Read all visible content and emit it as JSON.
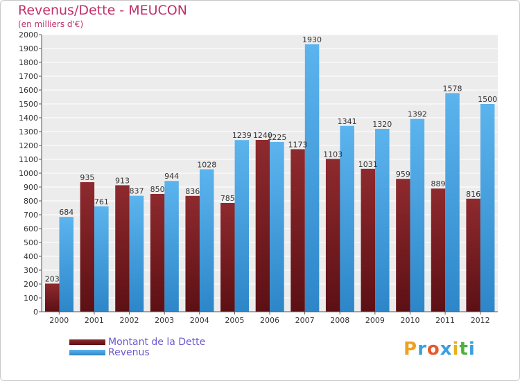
{
  "header": {
    "title": "Revenus/Dette - MEUCON",
    "subtitle": "(en milliers d'€)"
  },
  "colors": {
    "dette": "#7a1f22",
    "revenus": "#4aa6e6",
    "title": "#c0306a",
    "legend_text": "#6a5acd"
  },
  "chart_data": {
    "type": "bar",
    "title": "Revenus/Dette - MEUCON",
    "ylabel": "(en milliers d'€)",
    "xlabel": "",
    "ylim": [
      0,
      2000
    ],
    "yticks": [
      0,
      100,
      200,
      300,
      400,
      500,
      600,
      700,
      800,
      900,
      1000,
      1100,
      1200,
      1300,
      1400,
      1500,
      1600,
      1700,
      1800,
      1900,
      2000
    ],
    "categories": [
      "2000",
      "2001",
      "2002",
      "2003",
      "2004",
      "2005",
      "2006",
      "2007",
      "2008",
      "2009",
      "2010",
      "2011",
      "2012"
    ],
    "series": [
      {
        "name": "Montant de la Dette",
        "values": [
          203,
          935,
          913,
          850,
          836,
          785,
          1240,
          1173,
          1103,
          1031,
          959,
          889,
          816
        ],
        "labels": [
          "203",
          "935",
          "913",
          "850",
          "836",
          "785",
          "1240",
          "1173",
          "1103",
          "1031",
          "959",
          "889",
          "816"
        ]
      },
      {
        "name": "Revenus",
        "values": [
          684,
          761,
          837,
          944,
          1028,
          1239,
          1225,
          1930,
          1341,
          1320,
          1392,
          1578,
          1500
        ],
        "labels": [
          "684",
          "761",
          "837",
          "944",
          "1028",
          "1239",
          "1225",
          "1930",
          "1341",
          "1320",
          "1392",
          "1578",
          "1500"
        ]
      }
    ],
    "legend_position": "bottom-left",
    "grid": true
  },
  "legend": {
    "items": [
      {
        "label": "Montant de la Dette"
      },
      {
        "label": "Revenus"
      }
    ]
  },
  "logo": {
    "letters": [
      "P",
      "r",
      "o",
      "x",
      "i",
      "t",
      "i"
    ],
    "letter_colors": [
      "#f0a020",
      "#3aa0e0",
      "#e85a2a",
      "#3aa0e0",
      "#e8b020",
      "#50b040",
      "#3aa0e0"
    ]
  }
}
